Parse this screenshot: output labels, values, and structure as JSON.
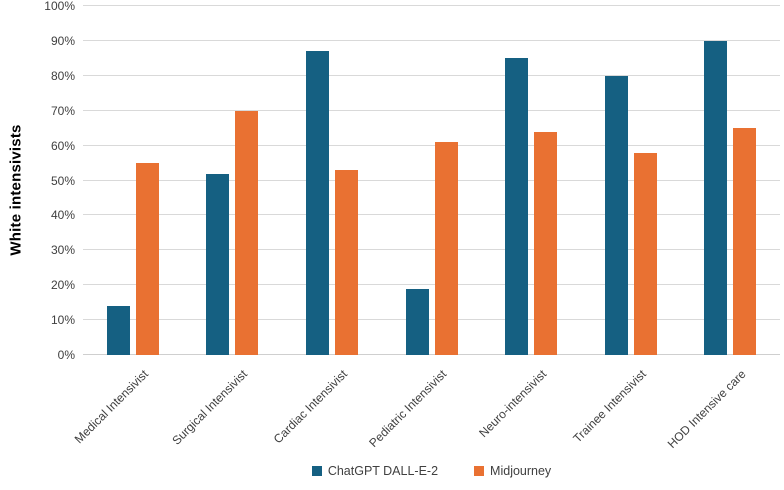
{
  "chart_data": {
    "type": "bar",
    "title": "",
    "xlabel": "",
    "ylabel": "White intensivists",
    "categories": [
      "Medical Intensivist",
      "Surgical Intensivist",
      "Cardiac Intensivist",
      "Pediatric Intensivist",
      "Neuro-intensivist",
      "Trainee Intensivist",
      "HOD Intensive care"
    ],
    "series": [
      {
        "name": "ChatGPT DALL-E-2",
        "color": "#156082",
        "values": [
          14,
          52,
          87,
          19,
          85,
          80,
          90
        ]
      },
      {
        "name": "Midjourney",
        "color": "#E97132",
        "values": [
          55,
          70,
          53,
          61,
          64,
          58,
          65
        ]
      }
    ],
    "ylim": [
      0,
      100
    ],
    "ytick_values": [
      0,
      10,
      20,
      30,
      40,
      50,
      60,
      70,
      80,
      90,
      100
    ],
    "ytick_labels": [
      "0%",
      "10%",
      "20%",
      "30%",
      "40%",
      "50%",
      "60%",
      "70%",
      "80%",
      "90%",
      "100%"
    ],
    "grid": "horizontal",
    "legend_position": "bottom"
  },
  "colors": {
    "gridline": "#D9D9D9",
    "axis_line": "#CFCFCF",
    "tick_label": "#404040",
    "axis_title": "#000000",
    "background": "#FFFFFF"
  }
}
